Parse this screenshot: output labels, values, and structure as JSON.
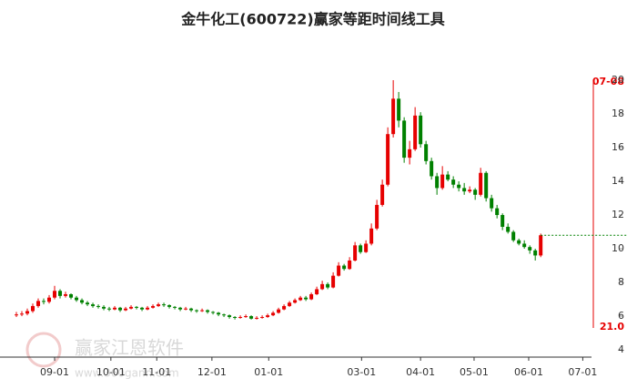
{
  "chart_data": {
    "type": "candlestick",
    "title": "金牛化工(600722)赢家等距时间线工具",
    "up_color": "#e60000",
    "down_color": "#008000",
    "xlim": [
      -3,
      105.3
    ],
    "xticks": [
      {
        "value": 7,
        "label": "09-01"
      },
      {
        "value": 17.3,
        "label": "10-01"
      },
      {
        "value": 25.7,
        "label": "11-01"
      },
      {
        "value": 35.8,
        "label": "12-01"
      },
      {
        "value": 46.2,
        "label": "01-01"
      },
      {
        "value": 63.2,
        "label": "03-01"
      },
      {
        "value": 74,
        "label": "04-01"
      },
      {
        "value": 83.8,
        "label": "05-01"
      },
      {
        "value": 93.8,
        "label": "06-01"
      },
      {
        "value": 103.7,
        "label": "07-01"
      }
    ],
    "ylim": [
      3.57,
      20.54
    ],
    "yticks": [
      4,
      6,
      8,
      10,
      12,
      14,
      16,
      18,
      20
    ],
    "ohlc": [
      [
        6.05,
        6.25,
        5.95,
        6.1
      ],
      [
        6.1,
        6.3,
        6.0,
        6.15
      ],
      [
        6.15,
        6.45,
        6.05,
        6.3
      ],
      [
        6.3,
        6.75,
        6.2,
        6.6
      ],
      [
        6.6,
        7.05,
        6.5,
        6.9
      ],
      [
        6.9,
        7.05,
        6.7,
        6.85
      ],
      [
        6.85,
        7.25,
        6.75,
        7.1
      ],
      [
        7.1,
        7.8,
        7.0,
        7.5
      ],
      [
        7.5,
        7.6,
        7.05,
        7.2
      ],
      [
        7.2,
        7.45,
        7.1,
        7.3
      ],
      [
        7.3,
        7.35,
        7.0,
        7.1
      ],
      [
        7.1,
        7.2,
        6.85,
        6.95
      ],
      [
        6.95,
        7.05,
        6.7,
        6.8
      ],
      [
        6.8,
        6.9,
        6.6,
        6.7
      ],
      [
        6.7,
        6.8,
        6.5,
        6.6
      ],
      [
        6.6,
        6.7,
        6.45,
        6.55
      ],
      [
        6.55,
        6.65,
        6.35,
        6.45
      ],
      [
        6.45,
        6.55,
        6.3,
        6.4
      ],
      [
        6.4,
        6.6,
        6.35,
        6.5
      ],
      [
        6.5,
        6.55,
        6.25,
        6.35
      ],
      [
        6.35,
        6.55,
        6.3,
        6.45
      ],
      [
        6.45,
        6.65,
        6.4,
        6.55
      ],
      [
        6.55,
        6.6,
        6.4,
        6.5
      ],
      [
        6.5,
        6.55,
        6.3,
        6.4
      ],
      [
        6.4,
        6.6,
        6.35,
        6.5
      ],
      [
        6.5,
        6.7,
        6.45,
        6.6
      ],
      [
        6.6,
        6.8,
        6.55,
        6.7
      ],
      [
        6.7,
        6.8,
        6.55,
        6.65
      ],
      [
        6.65,
        6.7,
        6.45,
        6.55
      ],
      [
        6.55,
        6.6,
        6.4,
        6.5
      ],
      [
        6.5,
        6.55,
        6.3,
        6.4
      ],
      [
        6.4,
        6.55,
        6.35,
        6.45
      ],
      [
        6.45,
        6.5,
        6.25,
        6.35
      ],
      [
        6.35,
        6.4,
        6.2,
        6.3
      ],
      [
        6.3,
        6.45,
        6.25,
        6.35
      ],
      [
        6.35,
        6.4,
        6.15,
        6.25
      ],
      [
        6.25,
        6.3,
        6.1,
        6.2
      ],
      [
        6.2,
        6.25,
        6.0,
        6.1
      ],
      [
        6.1,
        6.15,
        5.95,
        6.05
      ],
      [
        6.05,
        6.1,
        5.85,
        5.95
      ],
      [
        5.95,
        6.0,
        5.8,
        5.9
      ],
      [
        5.9,
        6.05,
        5.85,
        5.95
      ],
      [
        5.95,
        6.1,
        5.9,
        6.0
      ],
      [
        6.0,
        6.05,
        5.8,
        5.85
      ],
      [
        5.85,
        6.0,
        5.8,
        5.9
      ],
      [
        5.9,
        6.05,
        5.85,
        5.95
      ],
      [
        5.95,
        6.15,
        5.9,
        6.05
      ],
      [
        6.05,
        6.3,
        6.0,
        6.2
      ],
      [
        6.2,
        6.5,
        6.15,
        6.4
      ],
      [
        6.4,
        6.7,
        6.35,
        6.6
      ],
      [
        6.6,
        6.9,
        6.55,
        6.8
      ],
      [
        6.8,
        7.05,
        6.75,
        6.95
      ],
      [
        6.95,
        7.2,
        6.9,
        7.1
      ],
      [
        7.1,
        7.2,
        6.9,
        7.0
      ],
      [
        7.0,
        7.4,
        6.95,
        7.3
      ],
      [
        7.3,
        7.75,
        7.25,
        7.6
      ],
      [
        7.6,
        8.1,
        7.55,
        7.9
      ],
      [
        7.9,
        8.0,
        7.6,
        7.7
      ],
      [
        7.7,
        8.6,
        7.65,
        8.4
      ],
      [
        8.4,
        9.2,
        8.35,
        9.0
      ],
      [
        9.0,
        9.1,
        8.7,
        8.8
      ],
      [
        8.8,
        9.5,
        8.75,
        9.3
      ],
      [
        9.3,
        10.4,
        9.25,
        10.2
      ],
      [
        10.2,
        10.3,
        9.7,
        9.8
      ],
      [
        9.8,
        10.5,
        9.75,
        10.3
      ],
      [
        10.3,
        11.5,
        10.2,
        11.2
      ],
      [
        11.2,
        12.9,
        11.1,
        12.6
      ],
      [
        12.6,
        14.1,
        12.5,
        13.8
      ],
      [
        13.8,
        17.2,
        13.7,
        16.8
      ],
      [
        16.8,
        20.0,
        16.6,
        18.9
      ],
      [
        18.9,
        19.3,
        17.2,
        17.6
      ],
      [
        17.6,
        17.8,
        15.1,
        15.4
      ],
      [
        15.4,
        16.4,
        15.0,
        15.9
      ],
      [
        15.9,
        18.4,
        15.8,
        17.9
      ],
      [
        17.9,
        18.1,
        16.0,
        16.2
      ],
      [
        16.2,
        16.4,
        15.0,
        15.2
      ],
      [
        15.2,
        15.4,
        14.1,
        14.3
      ],
      [
        14.3,
        14.5,
        13.2,
        13.6
      ],
      [
        13.6,
        14.9,
        13.5,
        14.4
      ],
      [
        14.4,
        14.6,
        14.0,
        14.1
      ],
      [
        14.1,
        14.3,
        13.6,
        13.8
      ],
      [
        13.8,
        14.0,
        13.4,
        13.6
      ],
      [
        13.6,
        13.9,
        13.2,
        13.4
      ],
      [
        13.4,
        13.7,
        13.3,
        13.5
      ],
      [
        13.5,
        13.6,
        12.9,
        13.2
      ],
      [
        13.2,
        14.8,
        13.1,
        14.5
      ],
      [
        14.5,
        14.6,
        12.8,
        13.0
      ],
      [
        13.0,
        13.2,
        12.2,
        12.4
      ],
      [
        12.4,
        12.6,
        11.8,
        12.0
      ],
      [
        12.0,
        12.1,
        11.1,
        11.3
      ],
      [
        11.3,
        11.5,
        10.9,
        11.0
      ],
      [
        11.0,
        11.1,
        10.4,
        10.5
      ],
      [
        10.5,
        10.6,
        10.2,
        10.3
      ],
      [
        10.3,
        10.5,
        10.0,
        10.1
      ],
      [
        10.1,
        10.2,
        9.7,
        9.9
      ],
      [
        9.9,
        10.0,
        9.3,
        9.6
      ],
      [
        9.6,
        10.9,
        9.5,
        10.8
      ]
    ],
    "last_price_line": 10.8,
    "timeline_top_label": "07-08",
    "timeline_bottom_label": "21.0",
    "watermark": "赢家江恩软件",
    "watermark_url": "www.360gann.com"
  }
}
